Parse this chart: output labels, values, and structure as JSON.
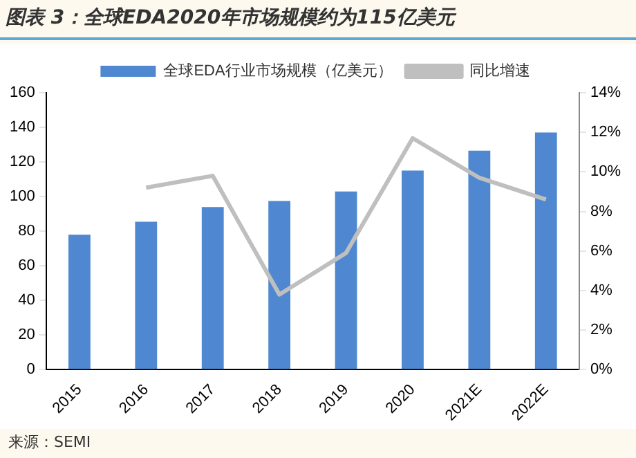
{
  "chart_data": {
    "type": "bar",
    "title": "图表 3：全球EDA2020年市场规模约为115亿美元",
    "categories": [
      "2015",
      "2016",
      "2017",
      "2018",
      "2019",
      "2020",
      "2021E",
      "2022E"
    ],
    "series": [
      {
        "name": "全球EDA行业市场规模（亿美元）",
        "color": "#4f88d0",
        "values": [
          78,
          85.5,
          94,
          97.5,
          103,
          115,
          126.5,
          137
        ]
      },
      {
        "name": "同比增速",
        "type": "line",
        "axis": "y2",
        "color": "#bfbfbf",
        "values": [
          null,
          9.2,
          9.8,
          3.8,
          5.9,
          11.7,
          9.7,
          8.6
        ]
      }
    ],
    "ylim": [
      0,
      160
    ],
    "yticks": [
      0,
      20,
      40,
      60,
      80,
      100,
      120,
      140,
      160
    ],
    "y2lim": [
      0,
      14
    ],
    "y2ticks": [
      {
        "value": 0,
        "label": "0%"
      },
      {
        "value": 2,
        "label": "2%"
      },
      {
        "value": 4,
        "label": "4%"
      },
      {
        "value": 6,
        "label": "6%"
      },
      {
        "value": 8,
        "label": "8%"
      },
      {
        "value": 10,
        "label": "10%"
      },
      {
        "value": 12,
        "label": "12%"
      },
      {
        "value": 14,
        "label": "14%"
      }
    ],
    "grid": false,
    "legend": "top",
    "marker": "none",
    "annotations": [
      "来源：SEMI"
    ]
  }
}
